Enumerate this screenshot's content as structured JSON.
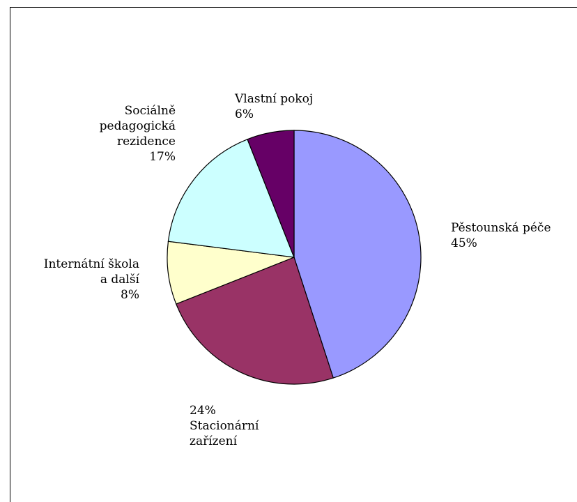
{
  "chart_data": {
    "type": "pie",
    "title": "",
    "slices": [
      {
        "label_lines": [
          "Pěstounská péče"
        ],
        "pct_text": "45%",
        "value": 45,
        "color": "#9999ff"
      },
      {
        "label_lines": [
          "Stacionární",
          "zařízení"
        ],
        "pct_text": "24%",
        "value": 24,
        "color": "#993366"
      },
      {
        "label_lines": [
          "Internátní škola",
          "a další"
        ],
        "pct_text": "8%",
        "value": 8,
        "color": "#ffffcc"
      },
      {
        "label_lines": [
          "Sociálně",
          "pedagogická",
          "rezidence"
        ],
        "pct_text": "17%",
        "value": 17,
        "color": "#ccffff"
      },
      {
        "label_lines": [
          "Vlastní pokoj"
        ],
        "pct_text": "6%",
        "value": 6,
        "color": "#660066"
      }
    ],
    "start_angle_deg": 0,
    "direction": "clockwise",
    "legend": "none",
    "border_color": "#000000"
  }
}
